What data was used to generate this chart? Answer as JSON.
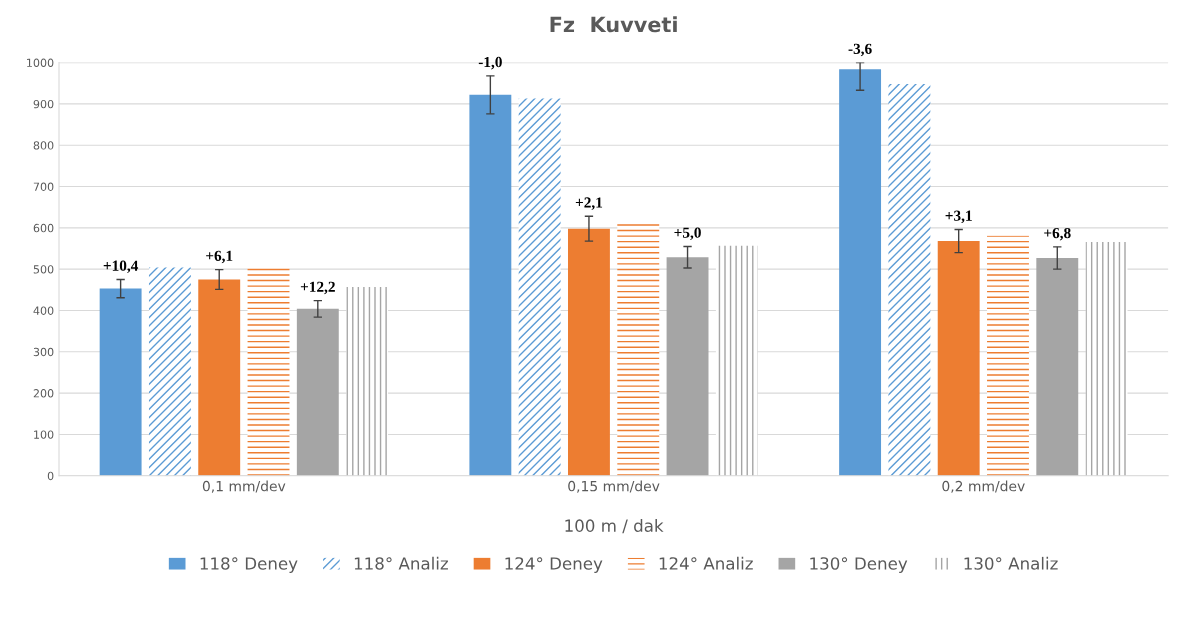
{
  "chart_data": {
    "type": "bar",
    "title": "Fz  Kuvveti",
    "xlabel": "100 m / dak",
    "categories": [
      "0,1 mm/dev",
      "0,15 mm/dev",
      "0,2 mm/dev"
    ],
    "series": [
      {
        "name": "118° Deney",
        "color": "#5b9bd5",
        "values": [
          453,
          922,
          984
        ],
        "errors": [
          22,
          46,
          [
            933,
            1000
          ]
        ]
      },
      {
        "name": "118° Analiz",
        "color": "#5b9bd5",
        "values": [
          504,
          913,
          948
        ]
      },
      {
        "name": "124° Deney",
        "color": "#ed7d31",
        "values": [
          475,
          598,
          568
        ],
        "errors": [
          24,
          30,
          28
        ]
      },
      {
        "name": "124° Analiz",
        "color": "#ed7d31",
        "values": [
          507,
          611,
          581
        ]
      },
      {
        "name": "130° Deney",
        "color": "#a5a5a5",
        "values": [
          404,
          529,
          527
        ],
        "errors": [
          20,
          26,
          27
        ]
      },
      {
        "name": "130° Analiz",
        "color": "#a5a5a5",
        "values": [
          457,
          557,
          566
        ]
      }
    ],
    "annotations": [
      "+10,4",
      "-1,0",
      "-3,6",
      "+6,1",
      "+2,1",
      "+3,1",
      "+12,2",
      "+5,0",
      "+6,8"
    ],
    "ylim": [
      0,
      1000
    ],
    "yticks": [
      0,
      100,
      200,
      300,
      400,
      500,
      600,
      700,
      800,
      900,
      1000
    ],
    "grid": "y",
    "legend": "bottom"
  }
}
